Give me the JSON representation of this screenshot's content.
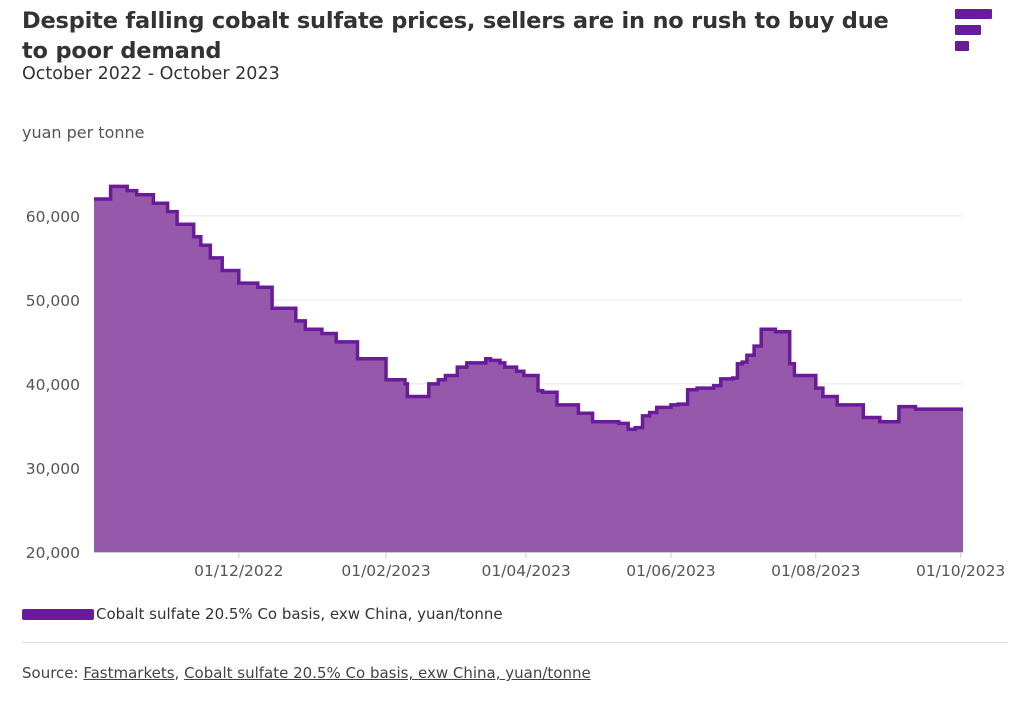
{
  "header": {
    "title": "Despite falling cobalt sulfate prices, sellers are in no rush to buy due to poor demand",
    "subtitle": "October 2022 - October 2023"
  },
  "logo": {
    "icon": "fastmarkets-logo-icon",
    "color": "#6a1b9a"
  },
  "legend": {
    "label": "Cobalt sulfate 20.5% Co basis, exw China, yuan/tonne"
  },
  "source": {
    "prefix": "Source: ",
    "link1": "Fastmarkets",
    "separator": ", ",
    "link2": "Cobalt sulfate 20.5% Co basis, exw China, yuan/tonne"
  },
  "colors": {
    "line": "#6a1b9a",
    "area": "#9658ab",
    "grid": "#e6e6e6",
    "text": "#333333"
  },
  "chart_data": {
    "type": "area",
    "ylabel": "yuan per tonne",
    "ylim": [
      20000,
      67000
    ],
    "yticks": [
      20000,
      30000,
      40000,
      50000,
      60000
    ],
    "ytick_labels": [
      "20,000",
      "30,000",
      "40,000",
      "50,000",
      "60,000"
    ],
    "xlim": [
      "2022-10-01",
      "2023-10-02"
    ],
    "xticks": [
      "2022-12-01",
      "2023-02-01",
      "2023-04-01",
      "2023-06-01",
      "2023-08-01",
      "2023-10-01"
    ],
    "xtick_labels": [
      "01/12/2022",
      "01/02/2023",
      "01/04/2023",
      "01/06/2023",
      "01/08/2023",
      "01/10/2023"
    ],
    "grid": "horizontal",
    "legend_position": "bottom-left",
    "series": [
      {
        "name": "Cobalt sulfate 20.5% Co basis, exw China, yuan/tonne",
        "step": true,
        "x": [
          "2022-10-01",
          "2022-10-08",
          "2022-10-15",
          "2022-10-19",
          "2022-10-26",
          "2022-11-01",
          "2022-11-05",
          "2022-11-12",
          "2022-11-15",
          "2022-11-19",
          "2022-11-24",
          "2022-12-01",
          "2022-12-09",
          "2022-12-12",
          "2022-12-15",
          "2022-12-17",
          "2022-12-25",
          "2022-12-29",
          "2023-01-05",
          "2023-01-11",
          "2023-01-13",
          "2023-01-20",
          "2023-02-01",
          "2023-02-09",
          "2023-02-10",
          "2023-02-16",
          "2023-02-19",
          "2023-02-23",
          "2023-02-26",
          "2023-03-01",
          "2023-03-03",
          "2023-03-07",
          "2023-03-15",
          "2023-03-17",
          "2023-03-21",
          "2023-03-23",
          "2023-03-28",
          "2023-03-31",
          "2023-04-06",
          "2023-04-08",
          "2023-04-14",
          "2023-04-23",
          "2023-04-29",
          "2023-05-05",
          "2023-05-10",
          "2023-05-14",
          "2023-05-17",
          "2023-05-20",
          "2023-05-23",
          "2023-05-26",
          "2023-06-01",
          "2023-06-04",
          "2023-06-08",
          "2023-06-12",
          "2023-06-15",
          "2023-06-19",
          "2023-06-22",
          "2023-06-27",
          "2023-06-29",
          "2023-07-01",
          "2023-07-03",
          "2023-07-06",
          "2023-07-09",
          "2023-07-12",
          "2023-07-15",
          "2023-07-21",
          "2023-07-23",
          "2023-07-30",
          "2023-08-01",
          "2023-08-04",
          "2023-08-10",
          "2023-08-15",
          "2023-08-21",
          "2023-08-28",
          "2023-09-05",
          "2023-09-12",
          "2023-10-02"
        ],
        "values": [
          62000,
          63500,
          63000,
          62500,
          61500,
          60500,
          59000,
          57500,
          56500,
          55000,
          53500,
          52000,
          51500,
          51500,
          49000,
          49000,
          47500,
          46500,
          46000,
          45000,
          45000,
          43000,
          40500,
          40000,
          38500,
          38500,
          40000,
          40500,
          41000,
          41000,
          42000,
          42500,
          43000,
          42800,
          42500,
          42000,
          41500,
          41000,
          39200,
          39000,
          37500,
          36500,
          35500,
          35500,
          35300,
          34600,
          34800,
          36200,
          36600,
          37200,
          37500,
          37600,
          39300,
          39500,
          39500,
          39800,
          40600,
          40700,
          42400,
          42600,
          43400,
          44500,
          46500,
          46500,
          46200,
          42400,
          41000,
          41000,
          39500,
          38500,
          37500,
          37500,
          36000,
          35500,
          37300,
          37000,
          37000
        ]
      }
    ]
  }
}
